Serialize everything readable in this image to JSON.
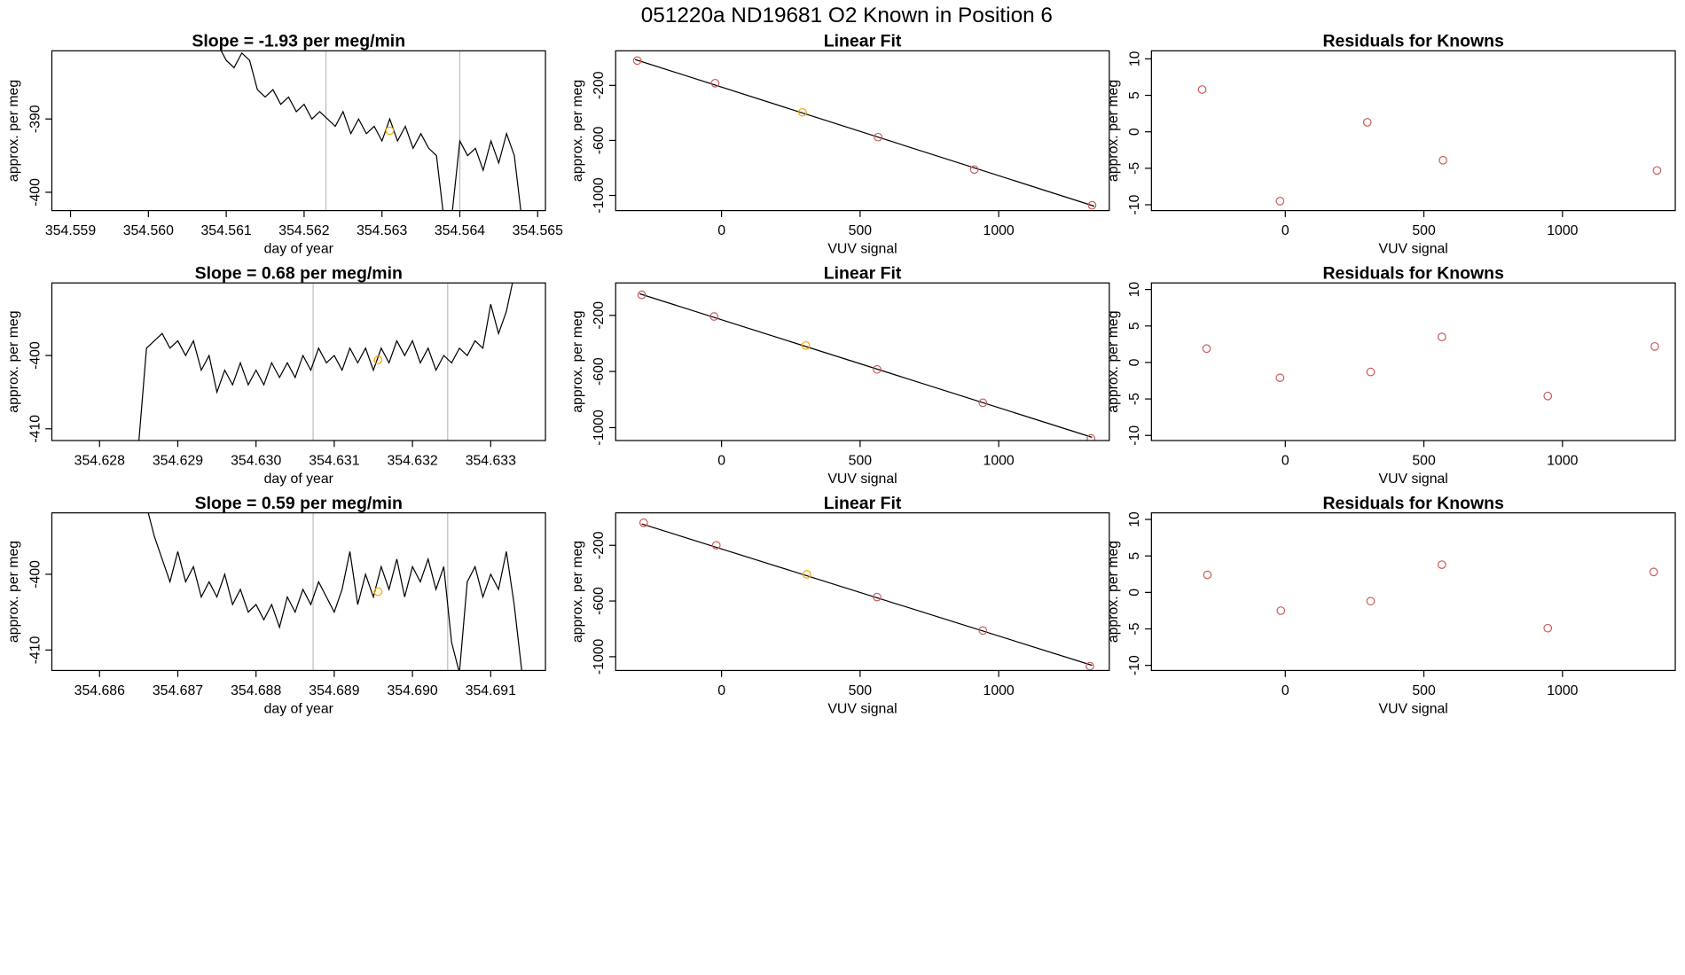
{
  "title": "051220a     ND19681   O2 Known in Position  6",
  "chart_data": [
    {
      "type": "line",
      "title": "Slope =  -1.93  per meg/min",
      "x_label": "day of year",
      "y_label": "approx. per meg",
      "x": [
        354.5609,
        354.561,
        354.5611,
        354.5612,
        354.5613,
        354.5614,
        354.5615,
        354.5616,
        354.5617,
        354.5618,
        354.5619,
        354.562,
        354.5621,
        354.5622,
        354.5623,
        354.5624,
        354.5625,
        354.5626,
        354.5627,
        354.5628,
        354.5629,
        354.563,
        354.5631,
        354.5632,
        354.5633,
        354.5634,
        354.5635,
        354.5636,
        354.5637,
        354.5638,
        354.5639,
        354.564,
        354.5641,
        354.5642,
        354.5643,
        354.5644,
        354.5645,
        354.5646,
        354.5647,
        354.5648
      ],
      "values": [
        -380,
        -382,
        -383,
        -381,
        -382,
        -386,
        -387,
        -386,
        -388,
        -387,
        -389,
        -388,
        -390,
        -389,
        -390,
        -391,
        -389,
        -392,
        -390,
        -392,
        -391,
        -393,
        -390,
        -393,
        -391,
        -394,
        -392,
        -394,
        -395,
        -404,
        -403,
        -393,
        -395,
        -394,
        -397,
        -393,
        -396,
        -392,
        -395,
        -404
      ],
      "color": "#000000",
      "xlim": [
        354.55876,
        354.5651
      ],
      "ylim": [
        -402.5,
        -380.7
      ],
      "xticks": [
        354.559,
        {
          "value": 354.56,
          "label": "354.560"
        },
        354.561,
        354.562,
        354.563,
        354.564,
        354.565
      ],
      "yticks": [
        -390,
        -400
      ],
      "vlines": [
        354.56228,
        354.564
      ],
      "vline_color": "#bebebe",
      "highlight": {
        "x": 354.5631,
        "y": -391.6,
        "color": "#ffa500"
      }
    },
    {
      "type": "scatter",
      "title": "Linear Fit",
      "x_label": "VUV signal",
      "y_label": "approx. per meg",
      "x": [
        -304,
        -23,
        292,
        565,
        912,
        1337
      ],
      "values": [
        -20,
        -184,
        -396,
        -576,
        -812,
        -1071
      ],
      "point_colors": [
        "#cd5c5c",
        "#cd5c5c",
        "#ffa500",
        "#cd5c5c",
        "#cd5c5c",
        "#cd5c5c"
      ],
      "fit_line": {
        "x": [
          -312,
          1345
        ],
        "y": [
          -12,
          -1078
        ],
        "color": "#000000"
      },
      "xlim": [
        -382,
        1399
      ],
      "ylim": [
        -1110,
        51
      ],
      "xticks": [
        0,
        500,
        1000
      ],
      "yticks": [
        -200,
        -600,
        -1000
      ]
    },
    {
      "type": "scatter",
      "title": "Residuals for Knowns",
      "x_label": "VUV signal",
      "y_label": "approx. per meg",
      "x": [
        -300,
        -19,
        296,
        569,
        1341
      ],
      "values": [
        5.8,
        -9.5,
        1.3,
        -3.9,
        -5.3
      ],
      "point_colors": [
        "#cd5c5c",
        "#cd5c5c",
        "#cd5c5c",
        "#cd5c5c",
        "#cd5c5c"
      ],
      "xlim": [
        -483,
        1407
      ],
      "ylim": [
        -10.8,
        11.1
      ],
      "xticks": [
        0,
        500,
        1000
      ],
      "yticks": [
        10,
        5,
        0,
        -5,
        -10
      ]
    },
    {
      "type": "line",
      "title": "Slope =  0.68  per meg/min",
      "x_label": "day of year",
      "y_label": "approx. per meg",
      "x": [
        354.6285,
        354.6286,
        354.6287,
        354.6288,
        354.6289,
        354.629,
        354.6291,
        354.6292,
        354.6293,
        354.6294,
        354.6295,
        354.6296,
        354.6297,
        354.6298,
        354.6299,
        354.63,
        354.6301,
        354.6302,
        354.6303,
        354.6304,
        354.6305,
        354.6306,
        354.6307,
        354.6308,
        354.6309,
        354.631,
        354.6311,
        354.6312,
        354.6313,
        354.6314,
        354.6315,
        354.6316,
        354.6317,
        354.6318,
        354.6319,
        354.632,
        354.6321,
        354.6322,
        354.6323,
        354.6324,
        354.6325,
        354.6326,
        354.6327,
        354.6328,
        354.6329,
        354.633,
        354.6331,
        354.6332,
        354.6333
      ],
      "values": [
        -412,
        -399,
        -398,
        -397,
        -399,
        -398,
        -400,
        -398,
        -402,
        -400,
        -405,
        -402,
        -404,
        -401,
        -404,
        -402,
        -404,
        -401,
        -403,
        -401,
        -403,
        -400,
        -402,
        -399,
        -401,
        -400,
        -402,
        -399,
        -401,
        -399,
        -402,
        -399,
        -401,
        -398,
        -400,
        -398,
        -401,
        -399,
        -402,
        -400,
        -401,
        -399,
        -400,
        -398,
        -399,
        -393,
        -397,
        -394,
        -389
      ],
      "color": "#000000",
      "xlim": [
        354.62739,
        354.6337
      ],
      "ylim": [
        -411.6,
        -390.1
      ],
      "xticks": [
        354.628,
        354.629,
        {
          "value": 354.63,
          "label": "354.630"
        },
        354.631,
        354.632,
        354.633
      ],
      "yticks": [
        -400,
        -410
      ],
      "vlines": [
        354.63073,
        354.63245
      ],
      "vline_color": "#bebebe",
      "highlight": {
        "x": 354.63156,
        "y": -400.6,
        "color": "#ffa500"
      }
    },
    {
      "type": "scatter",
      "title": "Linear Fit",
      "x_label": "VUV signal",
      "y_label": "approx. per meg",
      "x": [
        -288,
        -27,
        304,
        561,
        943,
        1333
      ],
      "values": [
        -54,
        -208,
        -415,
        -585,
        -823,
        -1077
      ],
      "point_colors": [
        "#cd5c5c",
        "#cd5c5c",
        "#ffa500",
        "#cd5c5c",
        "#cd5c5c",
        "#cd5c5c"
      ],
      "fit_line": {
        "x": [
          -296,
          1337
        ],
        "y": [
          -46,
          -1069
        ],
        "color": "#000000"
      },
      "xlim": [
        -382,
        1399
      ],
      "ylim": [
        -1092,
        31
      ],
      "xticks": [
        0,
        500,
        1000
      ],
      "yticks": [
        -200,
        -600,
        -1000
      ]
    },
    {
      "type": "scatter",
      "title": "Residuals for Knowns",
      "x_label": "VUV signal",
      "y_label": "approx. per meg",
      "x": [
        -284,
        -19,
        308,
        565,
        947,
        1333
      ],
      "values": [
        1.9,
        -2.1,
        -1.3,
        3.5,
        -4.6,
        2.2
      ],
      "point_colors": [
        "#cd5c5c",
        "#cd5c5c",
        "#cd5c5c",
        "#cd5c5c",
        "#cd5c5c",
        "#cd5c5c"
      ],
      "xlim": [
        -483,
        1407
      ],
      "ylim": [
        -10.7,
        10.9
      ],
      "xticks": [
        0,
        500,
        1000
      ],
      "yticks": [
        10,
        5,
        0,
        -5,
        -10
      ]
    },
    {
      "type": "line",
      "title": "Slope =  0.59  per meg/min",
      "x_label": "day of year",
      "y_label": "approx. per meg",
      "x": [
        354.6866,
        354.6867,
        354.6868,
        354.6869,
        354.687,
        354.6871,
        354.6872,
        354.6873,
        354.6874,
        354.6875,
        354.6876,
        354.6877,
        354.6878,
        354.6879,
        354.688,
        354.6881,
        354.6882,
        354.6883,
        354.6884,
        354.6885,
        354.6886,
        354.6887,
        354.6888,
        354.6889,
        354.689,
        354.6891,
        354.6892,
        354.6893,
        354.6894,
        354.6895,
        354.6896,
        354.6897,
        354.6898,
        354.6899,
        354.69,
        354.6901,
        354.6902,
        354.6903,
        354.6904,
        354.6905,
        354.6906,
        354.6907,
        354.6908,
        354.6909,
        354.691,
        354.6911,
        354.6912,
        354.6913,
        354.6914
      ],
      "values": [
        -391,
        -395,
        -398,
        -401,
        -397,
        -401,
        -399,
        -403,
        -401,
        -403,
        -400,
        -404,
        -402,
        -405,
        -404,
        -406,
        -404,
        -407,
        -403,
        -405,
        -402,
        -404,
        -401,
        -403,
        -405,
        -402,
        -397,
        -404,
        -400,
        -403,
        -399,
        -402,
        -398,
        -403,
        -399,
        -401,
        -398,
        -402,
        -399,
        -409,
        -413,
        -401,
        -399,
        -403,
        -400,
        -402,
        -397,
        -404,
        -413
      ],
      "color": "#000000",
      "xlim": [
        354.68539,
        354.6917
      ],
      "ylim": [
        -412.7,
        -391.9
      ],
      "xticks": [
        354.686,
        354.687,
        354.688,
        354.689,
        {
          "value": 354.69,
          "label": "354.690"
        },
        354.691
      ],
      "yticks": [
        -400,
        -410
      ],
      "vlines": [
        354.68873,
        354.69045
      ],
      "vline_color": "#bebebe",
      "highlight": {
        "x": 354.68956,
        "y": -402.3,
        "color": "#ffa500"
      }
    },
    {
      "type": "scatter",
      "title": "Linear Fit",
      "x_label": "VUV signal",
      "y_label": "approx. per meg",
      "x": [
        -281,
        -19,
        308,
        561,
        943,
        1329
      ],
      "values": [
        -38,
        -200,
        -409,
        -572,
        -812,
        -1068
      ],
      "point_colors": [
        "#cd5c5c",
        "#cd5c5c",
        "#ffa500",
        "#cd5c5c",
        "#cd5c5c",
        "#cd5c5c"
      ],
      "fit_line": {
        "x": [
          -288,
          1337
        ],
        "y": [
          -46,
          -1062
        ],
        "color": "#000000"
      },
      "xlim": [
        -382,
        1399
      ],
      "ylim": [
        -1099,
        33
      ],
      "xticks": [
        0,
        500,
        1000
      ],
      "yticks": [
        -200,
        -600,
        -1000
      ]
    },
    {
      "type": "scatter",
      "title": "Residuals for Knowns",
      "x_label": "VUV signal",
      "y_label": "approx. per meg",
      "x": [
        -281,
        -16,
        308,
        565,
        947,
        1329
      ],
      "values": [
        2.4,
        -2.5,
        -1.2,
        3.8,
        -4.9,
        2.8
      ],
      "point_colors": [
        "#cd5c5c",
        "#cd5c5c",
        "#cd5c5c",
        "#cd5c5c",
        "#cd5c5c",
        "#cd5c5c"
      ],
      "xlim": [
        -483,
        1407
      ],
      "ylim": [
        -10.7,
        10.9
      ],
      "xticks": [
        0,
        500,
        1000
      ],
      "yticks": [
        10,
        5,
        0,
        -5,
        -10
      ]
    }
  ]
}
